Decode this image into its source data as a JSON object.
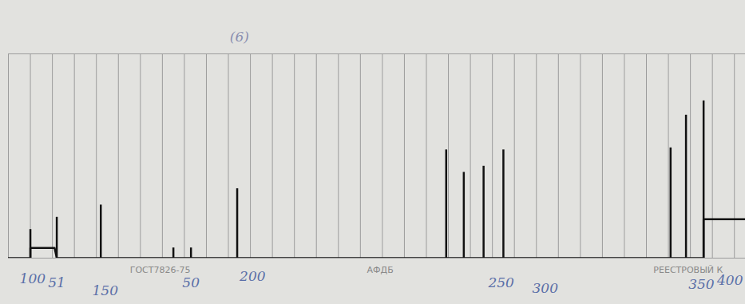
{
  "chart_data": {
    "type": "spike",
    "color": "#111111",
    "x": [
      1.0,
      2.2,
      4.2,
      7.5,
      8.3,
      10.4,
      19.9,
      20.7,
      21.6,
      22.5,
      30.1,
      30.8,
      31.6
    ],
    "values": [
      14,
      20,
      26,
      5,
      5,
      34,
      53,
      42,
      45,
      53,
      54,
      70,
      77
    ],
    "baseline": {
      "x": [
        0,
        1.0,
        1.0,
        2.1,
        2.2,
        31.6,
        31.6,
        33.5
      ],
      "values": [
        0,
        0,
        5,
        5,
        0,
        0,
        19,
        19
      ]
    },
    "xlim": [
      0,
      33.5
    ],
    "xticks": [
      0,
      1,
      2,
      3,
      4,
      5,
      6,
      7,
      8,
      9,
      10,
      11,
      12,
      13,
      14,
      15,
      16,
      17,
      18,
      19,
      20,
      21,
      22,
      23,
      24,
      25,
      26,
      27,
      28,
      29,
      30,
      31,
      32,
      33
    ],
    "ylim": [
      0,
      100
    ],
    "yticks": [
      0,
      100
    ],
    "grid": true,
    "tick_labels": false,
    "annotations": [
      {
        "text": "(6)",
        "x": 10.5,
        "y": 108,
        "color": "#8a8fb0"
      },
      {
        "text": "100",
        "x": 1.1,
        "y": -10,
        "color": "#5a6fa8"
      },
      {
        "text": "51",
        "x": 2.2,
        "y": -12,
        "color": "#5a6fa8"
      },
      {
        "text": "150",
        "x": 4.4,
        "y": -16,
        "color": "#5a6fa8"
      },
      {
        "text": "50",
        "x": 8.3,
        "y": -12,
        "color": "#5a6fa8"
      },
      {
        "text": "200",
        "x": 11.1,
        "y": -9,
        "color": "#5a6fa8"
      },
      {
        "text": "250",
        "x": 22.4,
        "y": -12,
        "color": "#5a6fa8"
      },
      {
        "text": "300",
        "x": 24.4,
        "y": -15,
        "color": "#5a6fa8"
      },
      {
        "text": "350",
        "x": 31.5,
        "y": -13,
        "color": "#5a6fa8"
      },
      {
        "text": "400",
        "x": 32.8,
        "y": -11,
        "color": "#5a6fa8"
      },
      {
        "text": "ГОСТ7826-75",
        "x": 6.9,
        "y": -6,
        "color": "#8a8a8a"
      },
      {
        "text": "АФДБ",
        "x": 16.9,
        "y": -6,
        "color": "#8a8a8a"
      },
      {
        "text": "РЕЕСТРОВЫЙ К",
        "x": 30.9,
        "y": -6,
        "color": "#8a8a8a"
      }
    ]
  }
}
